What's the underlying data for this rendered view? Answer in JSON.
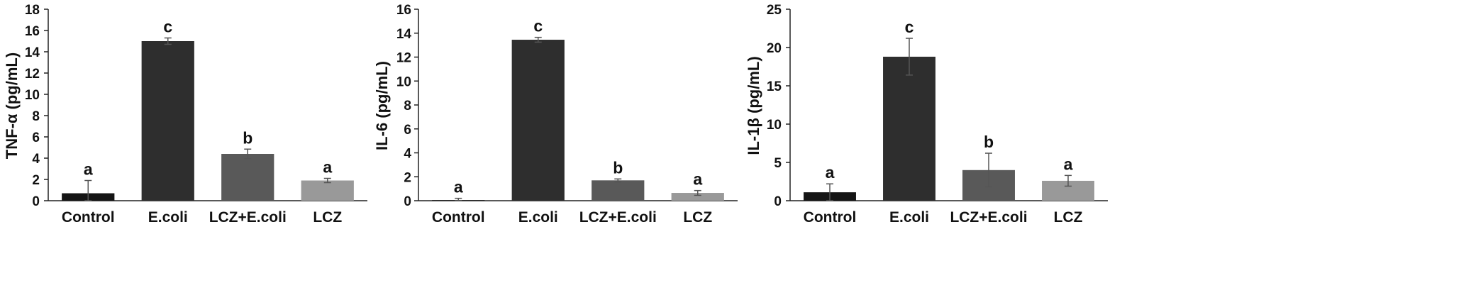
{
  "chart_data": [
    {
      "type": "bar",
      "ylabel": "TNF-α (pg/mL)",
      "ylim": [
        0,
        18
      ],
      "yticks": [
        0,
        2,
        4,
        6,
        8,
        10,
        12,
        14,
        16,
        18
      ],
      "categories": [
        "Control",
        "E.coli",
        "LCZ+E.coli",
        "LCZ"
      ],
      "values": [
        0.7,
        15.0,
        4.4,
        1.9
      ],
      "errors": [
        1.2,
        0.3,
        0.45,
        0.2
      ],
      "letters": [
        "a",
        "c",
        "b",
        "a"
      ],
      "colors": [
        "#151515",
        "#2e2e2e",
        "#595959",
        "#999999"
      ]
    },
    {
      "type": "bar",
      "ylabel": "IL-6 (pg/mL)",
      "ylim": [
        0,
        16
      ],
      "yticks": [
        0,
        2,
        4,
        6,
        8,
        10,
        12,
        14,
        16
      ],
      "categories": [
        "Control",
        "E.coli",
        "LCZ+E.coli",
        "LCZ"
      ],
      "values": [
        0.05,
        13.45,
        1.7,
        0.65
      ],
      "errors": [
        0.15,
        0.2,
        0.12,
        0.2
      ],
      "letters": [
        "a",
        "c",
        "b",
        "a"
      ],
      "colors": [
        "#151515",
        "#2e2e2e",
        "#595959",
        "#999999"
      ]
    },
    {
      "type": "bar",
      "ylabel": "IL-1β (pg/mL)",
      "ylim": [
        0,
        25
      ],
      "yticks": [
        0,
        5,
        10,
        15,
        20,
        25
      ],
      "categories": [
        "Control",
        "E.coli",
        "LCZ+E.coli",
        "LCZ"
      ],
      "values": [
        1.1,
        18.8,
        4.0,
        2.6
      ],
      "errors": [
        1.1,
        2.4,
        2.2,
        0.7
      ],
      "letters": [
        "a",
        "c",
        "b",
        "a"
      ],
      "colors": [
        "#151515",
        "#2e2e2e",
        "#595959",
        "#999999"
      ]
    }
  ]
}
